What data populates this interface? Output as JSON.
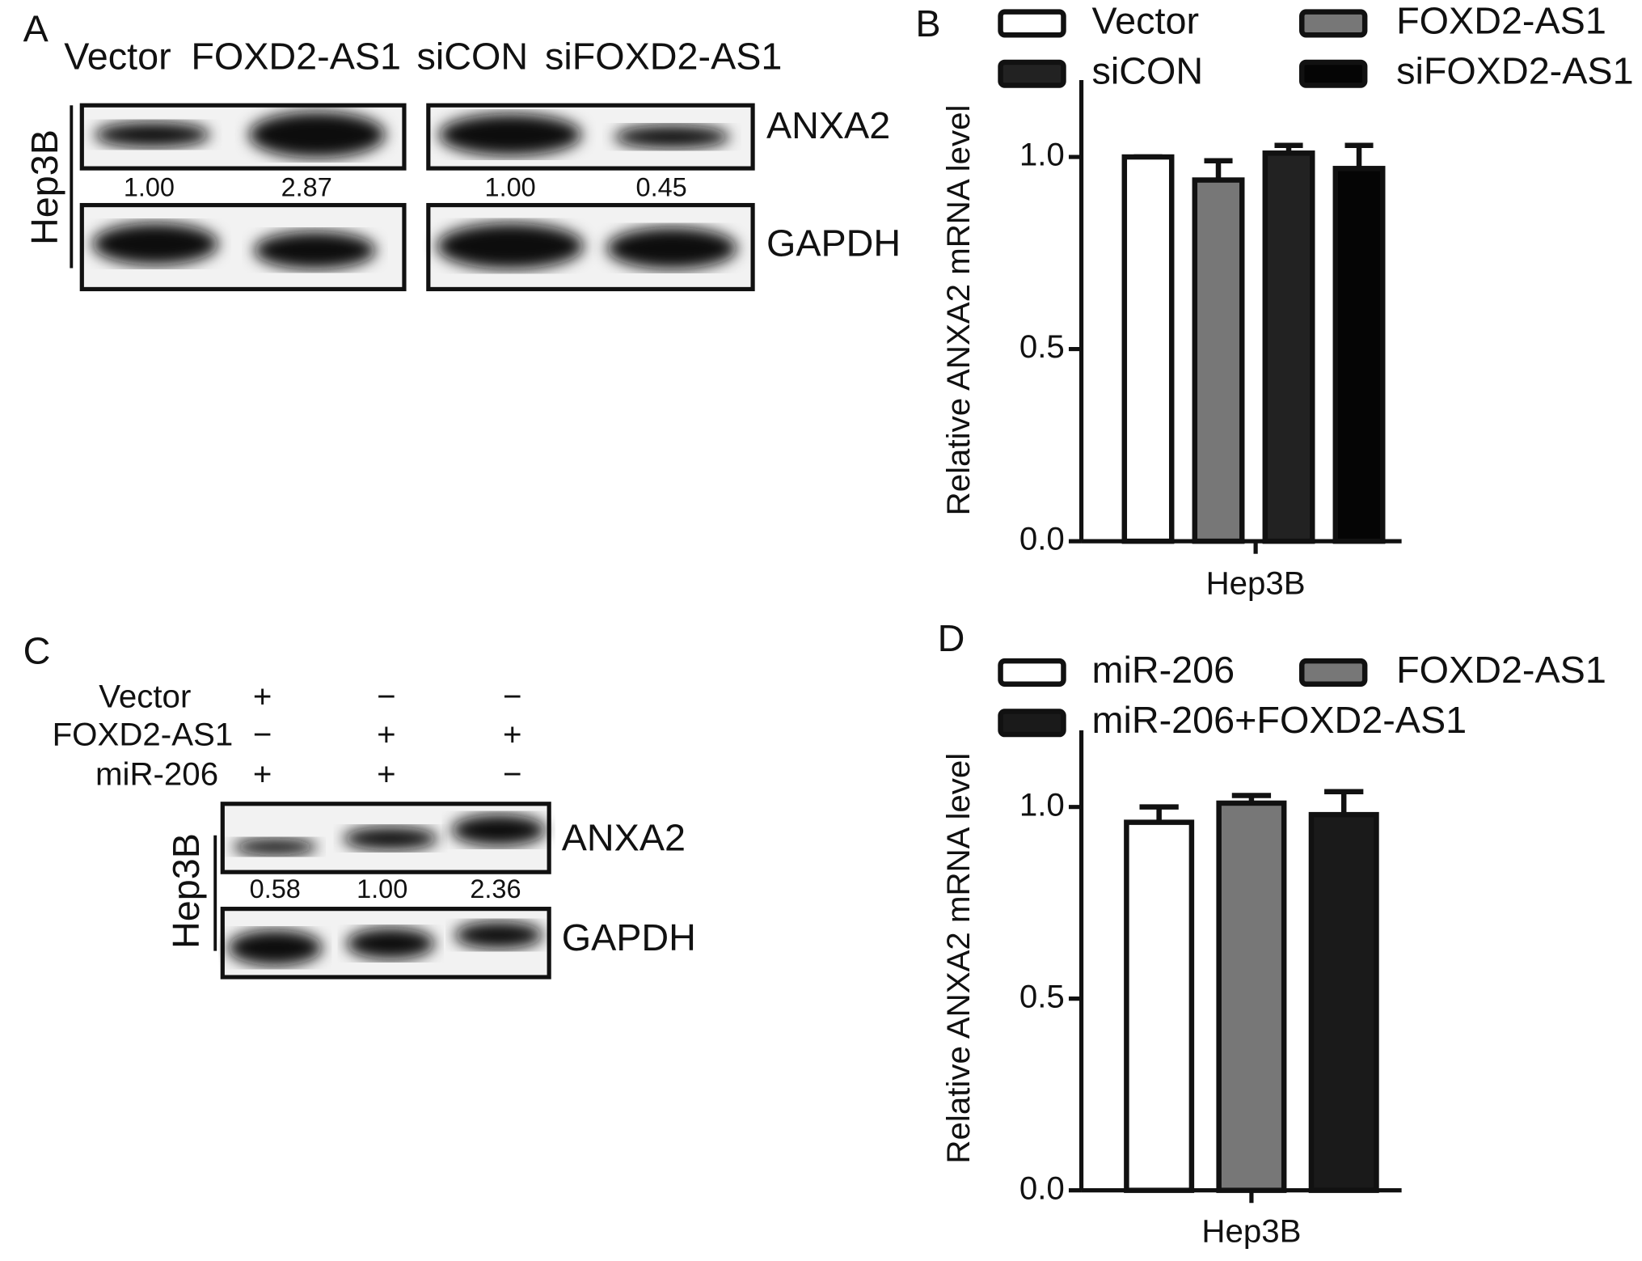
{
  "blots": [
    {
      "panel": "A",
      "cell_line": "Hep3B",
      "lanes": [
        "Vector",
        "FOXD2-AS1",
        "siCON",
        "siFOXD2-AS1"
      ],
      "rows": [
        "ANXA2",
        "GAPDH"
      ],
      "quantification": [
        "1.00",
        "2.87",
        "1.00",
        "0.45"
      ]
    },
    {
      "panel": "C",
      "cell_line": "Hep3B",
      "conditions": [
        {
          "name": "Vector",
          "marks": [
            "+",
            "−",
            "−"
          ]
        },
        {
          "name": "FOXD2-AS1",
          "marks": [
            "−",
            "+",
            "+"
          ]
        },
        {
          "name": "miR-206",
          "marks": [
            "+",
            "+",
            "−"
          ]
        }
      ],
      "rows": [
        "ANXA2",
        "GAPDH"
      ],
      "quantification": [
        "0.58",
        "1.00",
        "2.36"
      ]
    }
  ],
  "chart_data": [
    {
      "type": "bar",
      "panel": "B",
      "ylabel": "Relative ANXA2 mRNA level",
      "categories": [
        "Hep3B"
      ],
      "ylim": [
        0,
        1.2
      ],
      "yticks": [
        {
          "value": 0,
          "label": "0.0"
        },
        {
          "value": 0.5,
          "label": "0.5"
        },
        {
          "value": 1,
          "label": "1.0"
        }
      ],
      "grid": false,
      "legend": "top",
      "series": [
        {
          "name": "Vector",
          "color": "#ffffff",
          "values": [
            1.0
          ],
          "errors": [
            0
          ]
        },
        {
          "name": "FOXD2-AS1",
          "color": "#777777",
          "values": [
            0.94
          ],
          "errors": [
            0.05
          ]
        },
        {
          "name": "siCON",
          "color": "#222222",
          "values": [
            1.01
          ],
          "errors": [
            0.02
          ]
        },
        {
          "name": "siFOXD2-AS1",
          "color": "#050505",
          "values": [
            0.97
          ],
          "errors": [
            0.06
          ]
        }
      ]
    },
    {
      "type": "bar",
      "panel": "D",
      "ylabel": "Relative ANXA2 mRNA level",
      "categories": [
        "Hep3B"
      ],
      "ylim": [
        0,
        1.2
      ],
      "yticks": [
        {
          "value": 0,
          "label": "0.0"
        },
        {
          "value": 0.5,
          "label": "0.5"
        },
        {
          "value": 1,
          "label": "1.0"
        }
      ],
      "grid": false,
      "legend": "top",
      "series": [
        {
          "name": "miR-206",
          "color": "#ffffff",
          "values": [
            0.96
          ],
          "errors": [
            0.04
          ]
        },
        {
          "name": "FOXD2-AS1",
          "color": "#777777",
          "values": [
            1.01
          ],
          "errors": [
            0.02
          ]
        },
        {
          "name": "miR-206+FOXD2-AS1",
          "color": "#1a1a1a",
          "values": [
            0.98
          ],
          "errors": [
            0.06
          ]
        }
      ]
    }
  ]
}
